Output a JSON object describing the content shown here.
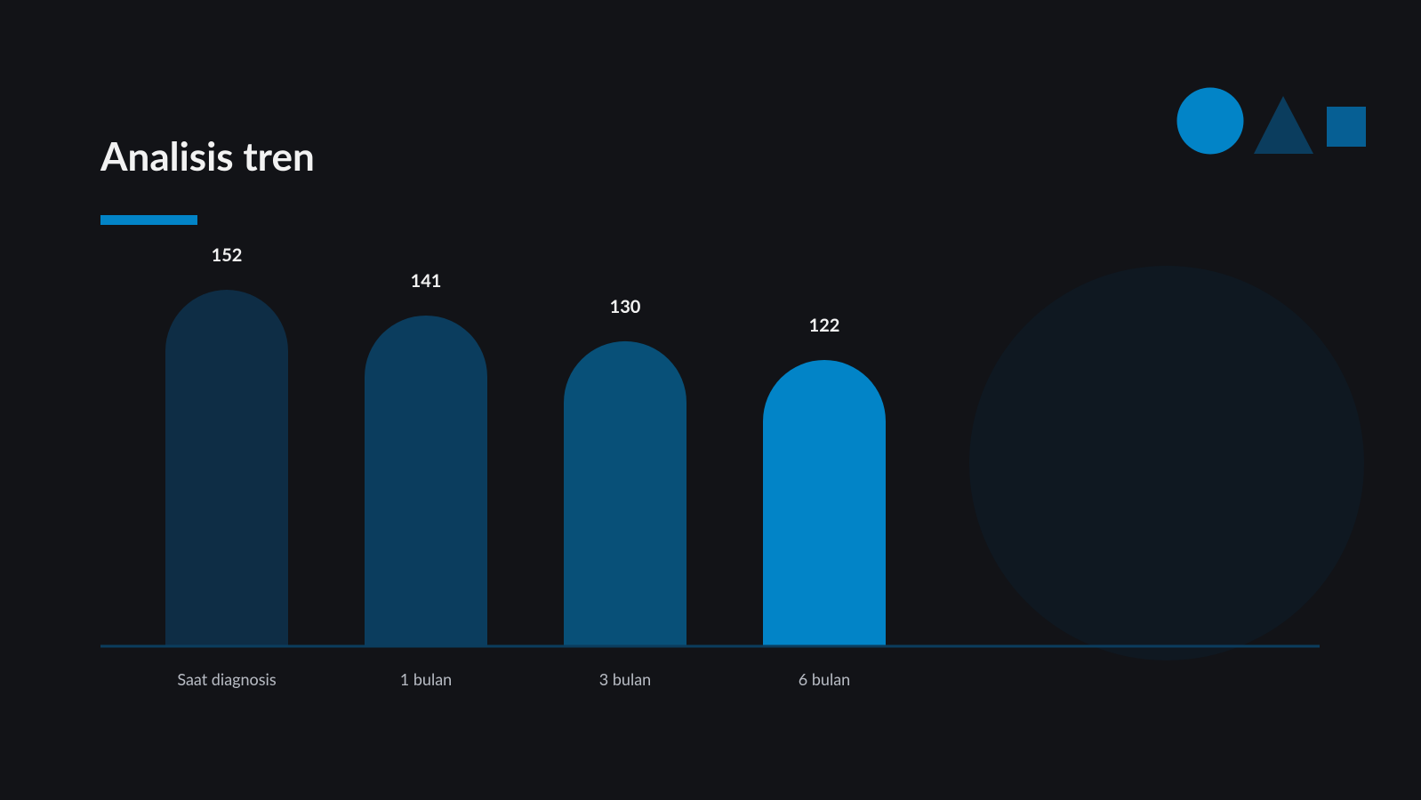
{
  "chart_data": {
    "type": "bar",
    "title": "Analisis tren",
    "categories": [
      "Saat diagnosis",
      "1 bulan",
      "3 bulan",
      "6 bulan"
    ],
    "values": [
      152,
      141,
      130,
      122
    ],
    "colors": [
      "#0e2d45",
      "#0b3d5e",
      "#085078",
      "#0284c7"
    ]
  }
}
